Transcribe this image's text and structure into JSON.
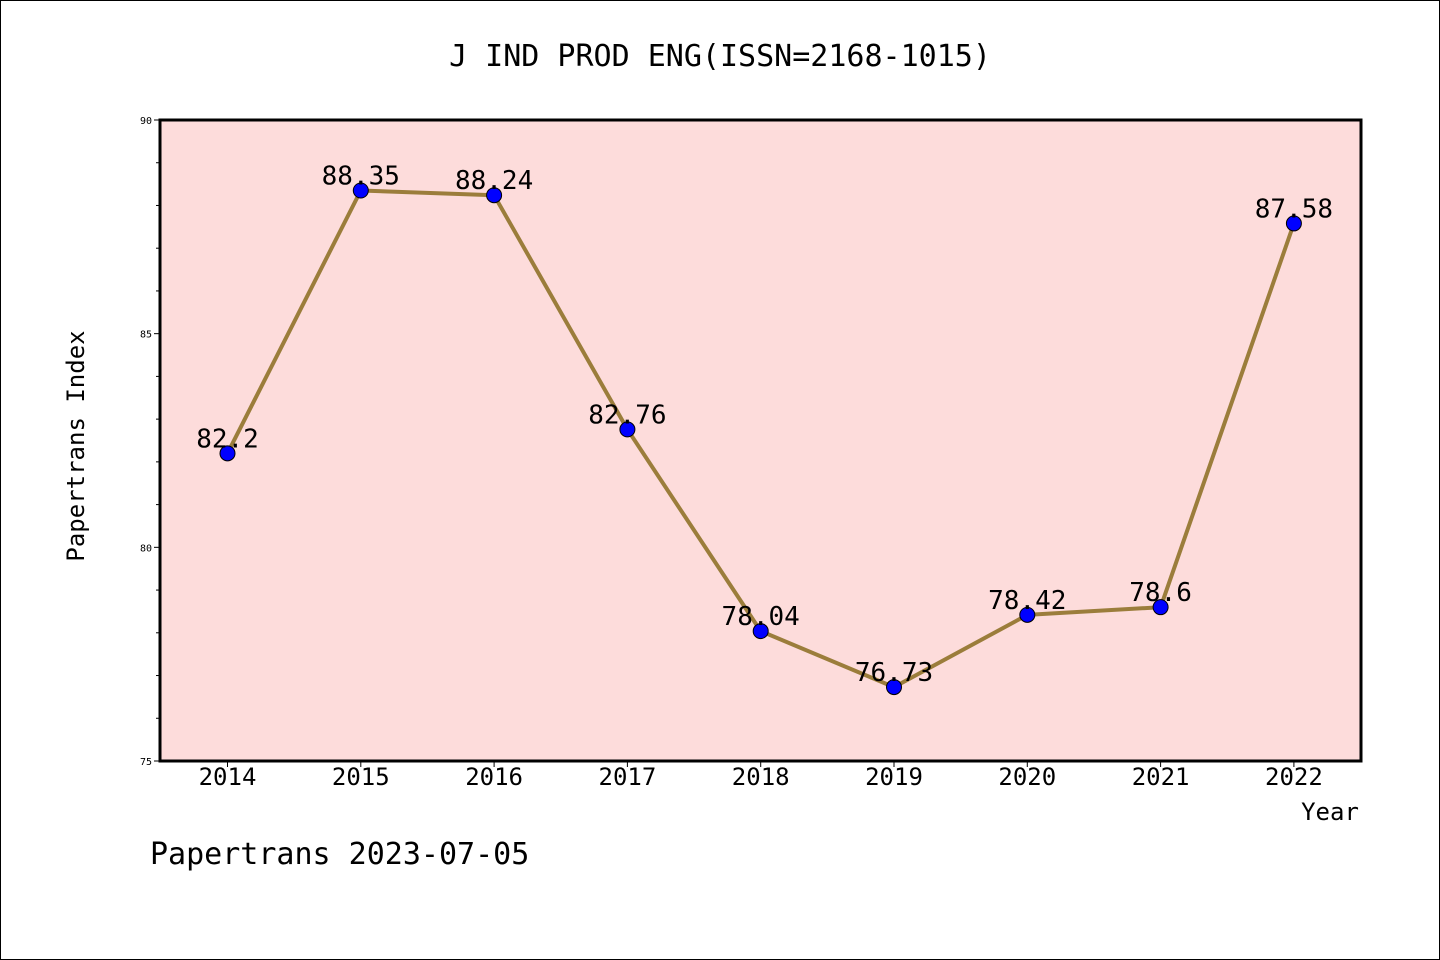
{
  "chart_data": {
    "type": "line",
    "title": "J IND PROD ENG(ISSN=2168-1015)",
    "xlabel": "Year",
    "ylabel": "Papertrans Index",
    "categories": [
      "2014",
      "2015",
      "2016",
      "2017",
      "2018",
      "2019",
      "2020",
      "2021",
      "2022"
    ],
    "series": [
      {
        "values": [
          82.2,
          88.35,
          88.24,
          82.76,
          78.04,
          76.73,
          78.42,
          78.6,
          87.58
        ],
        "data_labels": [
          "82.2",
          "88.35",
          "88.24",
          "82.76",
          "78.04",
          "76.73",
          "78.42",
          "78.6",
          "87.58"
        ]
      }
    ],
    "ylim": [
      75,
      90
    ],
    "yticks": [
      "75",
      "80",
      "85",
      "90"
    ],
    "grid": false,
    "colors": {
      "plot_background": "#fddcdb",
      "line": "#9b7d3b",
      "marker": "#0000ff"
    }
  },
  "footer": "Papertrans 2023-07-05"
}
